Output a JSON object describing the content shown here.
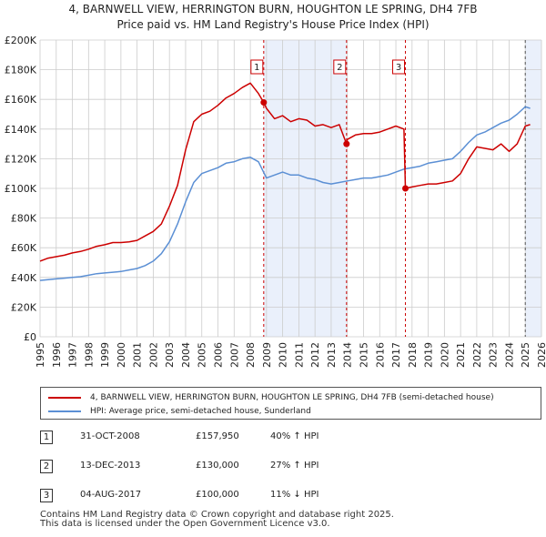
{
  "title": {
    "line1": "4, BARNWELL VIEW, HERRINGTON BURN, HOUGHTON LE SPRING, DH4 7FB",
    "line2": "Price paid vs. HM Land Registry's House Price Index (HPI)"
  },
  "legend": {
    "property": "4, BARNWELL VIEW, HERRINGTON BURN, HOUGHTON LE SPRING, DH4 7FB (semi-detached house)",
    "hpi": "HPI: Average price, semi-detached house, Sunderland"
  },
  "sales": [
    {
      "num": "1",
      "date": "31-OCT-2008",
      "price": "£157,950",
      "hpi": "40% ↑ HPI"
    },
    {
      "num": "2",
      "date": "13-DEC-2013",
      "price": "£130,000",
      "hpi": "27% ↑ HPI"
    },
    {
      "num": "3",
      "date": "04-AUG-2017",
      "price": "£100,000",
      "hpi": "11% ↓ HPI"
    }
  ],
  "footer": {
    "line1": "Contains HM Land Registry data © Crown copyright and database right 2025.",
    "line2": "This data is licensed under the Open Government Licence v3.0."
  },
  "colors": {
    "property": "#cc0000",
    "hpi": "#5b8fd4",
    "shade": "#eaf0fb",
    "grid": "#cccccc"
  },
  "chart_data": {
    "type": "line",
    "title": "4, BARNWELL VIEW, HERRINGTON BURN, HOUGHTON LE SPRING, DH4 7FB — Price paid vs. HM Land Registry's House Price Index (HPI)",
    "xlim": [
      1995,
      2026
    ],
    "ylim": [
      0,
      200000
    ],
    "y_ticks": [
      0,
      20000,
      40000,
      60000,
      80000,
      100000,
      120000,
      140000,
      160000,
      180000,
      200000
    ],
    "y_tick_labels": [
      "£0",
      "£20K",
      "£40K",
      "£60K",
      "£80K",
      "£100K",
      "£120K",
      "£140K",
      "£160K",
      "£180K",
      "£200K"
    ],
    "x_ticks": [
      1995,
      1996,
      1997,
      1998,
      1999,
      2000,
      2001,
      2002,
      2003,
      2004,
      2005,
      2006,
      2007,
      2008,
      2009,
      2010,
      2011,
      2012,
      2013,
      2014,
      2015,
      2016,
      2017,
      2018,
      2019,
      2020,
      2021,
      2022,
      2023,
      2024,
      2025,
      2026
    ],
    "x_tick_labels": [
      "1995",
      "1996",
      "1997",
      "1998",
      "1999",
      "2000",
      "2001",
      "2002",
      "2003",
      "2004",
      "2005",
      "2006",
      "2007",
      "2008",
      "2009",
      "2010",
      "2011",
      "2012",
      "2013",
      "2014",
      "2015",
      "2016",
      "2017",
      "2018",
      "2019",
      "2020",
      "2021",
      "2022",
      "2023",
      "2024",
      "2025",
      "2026"
    ],
    "grid": true,
    "series": [
      {
        "name": "4, BARNWELL VIEW, HERRINGTON BURN, HOUGHTON LE SPRING, DH4 7FB (semi-detached house)",
        "x": [
          1995.0,
          1995.5,
          1996.0,
          1996.5,
          1997.0,
          1997.5,
          1998.0,
          1998.5,
          1999.0,
          1999.5,
          2000.0,
          2000.5,
          2001.0,
          2001.5,
          2002.0,
          2002.5,
          2003.0,
          2003.5,
          2004.0,
          2004.5,
          2005.0,
          2005.5,
          2006.0,
          2006.5,
          2007.0,
          2007.5,
          2008.0,
          2008.5,
          2008.83,
          2009.0,
          2009.5,
          2010.0,
          2010.5,
          2011.0,
          2011.5,
          2012.0,
          2012.5,
          2013.0,
          2013.5,
          2013.95,
          2014.0,
          2014.5,
          2015.0,
          2015.5,
          2016.0,
          2016.5,
          2017.0,
          2017.5,
          2017.59,
          2018.0,
          2018.5,
          2019.0,
          2019.5,
          2020.0,
          2020.5,
          2021.0,
          2021.5,
          2022.0,
          2022.5,
          2023.0,
          2023.5,
          2024.0,
          2024.5,
          2025.0,
          2025.3
        ],
        "values": [
          51000,
          53000,
          54000,
          55000,
          56500,
          57500,
          59000,
          61000,
          62000,
          63500,
          63500,
          64000,
          65000,
          68000,
          71000,
          76000,
          88000,
          102000,
          126000,
          145000,
          150000,
          152000,
          156000,
          161000,
          164000,
          168000,
          171000,
          164000,
          157950,
          154000,
          147000,
          149000,
          145000,
          147000,
          146000,
          142000,
          143000,
          141000,
          143000,
          130000,
          133000,
          136000,
          137000,
          137000,
          138000,
          140000,
          142000,
          140000,
          100000,
          101000,
          102000,
          103000,
          103000,
          104000,
          105000,
          110000,
          120000,
          128000,
          127000,
          126000,
          130000,
          125000,
          130000,
          142000,
          143000
        ]
      },
      {
        "name": "HPI: Average price, semi-detached house, Sunderland",
        "x": [
          1995.0,
          1995.5,
          1996.0,
          1996.5,
          1997.0,
          1997.5,
          1998.0,
          1998.5,
          1999.0,
          1999.5,
          2000.0,
          2000.5,
          2001.0,
          2001.5,
          2002.0,
          2002.5,
          2003.0,
          2003.5,
          2004.0,
          2004.5,
          2005.0,
          2005.5,
          2006.0,
          2006.5,
          2007.0,
          2007.5,
          2008.0,
          2008.5,
          2009.0,
          2009.5,
          2010.0,
          2010.5,
          2011.0,
          2011.5,
          2012.0,
          2012.5,
          2013.0,
          2013.5,
          2014.0,
          2014.5,
          2015.0,
          2015.5,
          2016.0,
          2016.5,
          2017.0,
          2017.5,
          2018.0,
          2018.5,
          2019.0,
          2019.5,
          2020.0,
          2020.5,
          2021.0,
          2021.5,
          2022.0,
          2022.5,
          2023.0,
          2023.5,
          2024.0,
          2024.5,
          2025.0,
          2025.3
        ],
        "values": [
          38000,
          38500,
          39000,
          39500,
          40000,
          40500,
          41500,
          42500,
          43000,
          43500,
          44000,
          45000,
          46000,
          48000,
          51000,
          56000,
          64000,
          76000,
          91000,
          104000,
          110000,
          112000,
          114000,
          117000,
          118000,
          120000,
          121000,
          118000,
          107000,
          109000,
          111000,
          109000,
          109000,
          107000,
          106000,
          104000,
          103000,
          104000,
          105000,
          106000,
          107000,
          107000,
          108000,
          109000,
          111000,
          113000,
          114000,
          115000,
          117000,
          118000,
          119000,
          120000,
          125000,
          131000,
          136000,
          138000,
          141000,
          144000,
          146000,
          150000,
          155000,
          154000
        ]
      }
    ],
    "sales": [
      {
        "label": "1",
        "x": 2008.83,
        "y": 157950
      },
      {
        "label": "2",
        "x": 2013.95,
        "y": 130000
      },
      {
        "label": "3",
        "x": 2017.59,
        "y": 100000
      }
    ],
    "shaded_ranges": [
      [
        2008.83,
        2013.95
      ],
      [
        2025.0,
        2026.0
      ]
    ]
  }
}
